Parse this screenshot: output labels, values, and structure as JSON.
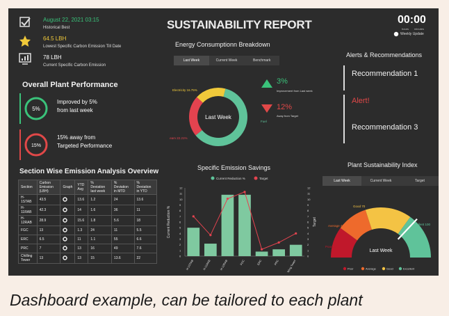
{
  "header": {
    "date": "August 22, 2021 03:15",
    "historical_best_label": "Historical Best",
    "best_value": "64.5 LBH",
    "best_desc": "Lowest Specific Carbon Emission Till Date",
    "current_value": "78 LBH",
    "current_desc": "Current Specific Carbon Emission",
    "title": "SUSTAINABILITY REPORT",
    "clock": "00:00",
    "clock_sub1": "hours",
    "clock_sub2": "minutes",
    "weekly_update": "Weekly Update"
  },
  "energy": {
    "title": "Energy Consumptionn Breakdown",
    "tabs": [
      "Last Week",
      "Current Week",
      "Benchmark"
    ],
    "center_label": "Last Week",
    "up_pct": "3%",
    "up_desc": "Improvement from Last week",
    "down_pct": "12%",
    "down_desc": "Away from Target"
  },
  "alerts": {
    "title": "Alerts & Recommendations",
    "items": [
      "Recommendation 1",
      "Alert!",
      "Recommendation 3"
    ]
  },
  "plant": {
    "title": "Overall Plant Performance",
    "kpi1_badge": "5%",
    "kpi1_text1": "Improved by 5%",
    "kpi1_text2": "from last week",
    "kpi2_badge": "15%",
    "kpi2_text1": "15% away from",
    "kpi2_text2": "Targeted Performance"
  },
  "section": {
    "title": "Section Wise Emission Analysis Overview",
    "columns": [
      "Section",
      "Carbon Emission (LBH)",
      "Graph",
      "YTD Avg",
      "% Deviation last week",
      "% Deviation in MTD",
      "% Deviation in YTD"
    ],
    "rows": [
      [
        "H-1STAB",
        "43.5",
        "",
        "13.6",
        "1.2",
        "24",
        "13.6"
      ],
      [
        "H-11RAB",
        "42.3",
        "",
        "14",
        "1.6",
        "36",
        "11"
      ],
      [
        "H-12RAB",
        "28.9",
        "",
        "15.6",
        "1.8",
        "5.6",
        "18"
      ],
      [
        "FGC",
        "13",
        "",
        "1.3",
        "24",
        "11",
        "5.5"
      ],
      [
        "ERC",
        "6.5",
        "",
        "11",
        "1.1",
        "55",
        "6.6"
      ],
      [
        "PRC",
        "7",
        "",
        "13",
        "16",
        "49",
        "7.6"
      ],
      [
        "Chilling Tower",
        "13",
        "",
        "13",
        "15",
        "13.6",
        "22"
      ]
    ]
  },
  "savings": {
    "title": "Specific Emission Savings",
    "legend_current": "Current Reduction %",
    "legend_target": "Target",
    "ylabel": "Current Reduction %",
    "ylabel_right": "Target"
  },
  "psi": {
    "title": "Plant Sustainability Index",
    "tabs": [
      "Last Week",
      "Current Week",
      "Target"
    ],
    "center_label": "Last Week",
    "legend": [
      "Poor",
      "Average",
      "Good",
      "Excellent"
    ]
  },
  "chart_data": [
    {
      "type": "pie",
      "title": "Energy Consumptionn Breakdown",
      "categories": [
        "Fuel",
        "Steam",
        "Electricity"
      ],
      "values": [
        58.74,
        22.21,
        16.75
      ],
      "slice_labels": [
        "Fuel 58.74%",
        "Steam 22.21%",
        "Electricity 16.75%"
      ],
      "colors": [
        "#5fc39a",
        "#e3434f",
        "#f0c93a"
      ]
    },
    {
      "type": "bar",
      "title": "Specific Emission Savings",
      "categories": [
        "H-1STAB",
        "H-11RAB",
        "H-12RAB",
        "FGC",
        "ERC",
        "PRC",
        "Wing Tower"
      ],
      "series": [
        {
          "name": "Current Reduction %",
          "type": "bar",
          "values": [
            5,
            2.2,
            10.8,
            10.8,
            0.8,
            1.2,
            2
          ]
        },
        {
          "name": "Target",
          "type": "line",
          "values": [
            7,
            3.7,
            10.1,
            11.3,
            1.2,
            2.4,
            4
          ]
        }
      ],
      "ylim": [
        0,
        12
      ],
      "yticks": [
        "0",
        "1",
        "2",
        "3",
        "4",
        "5",
        "6",
        "7",
        "8",
        "9",
        "10",
        "11",
        "12"
      ],
      "ylabel": "Current Reduction %",
      "ylabel_right": "Target"
    },
    {
      "type": "gauge",
      "title": "Plant Sustainability Index",
      "bands": [
        {
          "name": "Poor",
          "label": "Poor 20",
          "upper": 20,
          "color": "#c0182b"
        },
        {
          "name": "Average",
          "label": "Average 40",
          "upper": 40,
          "color": "#ee6a2c"
        },
        {
          "name": "Good",
          "label": "Good 70",
          "upper": 70,
          "color": "#f4c344"
        },
        {
          "name": "Excellent",
          "label": "Excellent 100",
          "upper": 100,
          "color": "#5fc39a"
        }
      ],
      "value": 74
    }
  ],
  "caption": "Dashboard example, can be tailored to each plant"
}
